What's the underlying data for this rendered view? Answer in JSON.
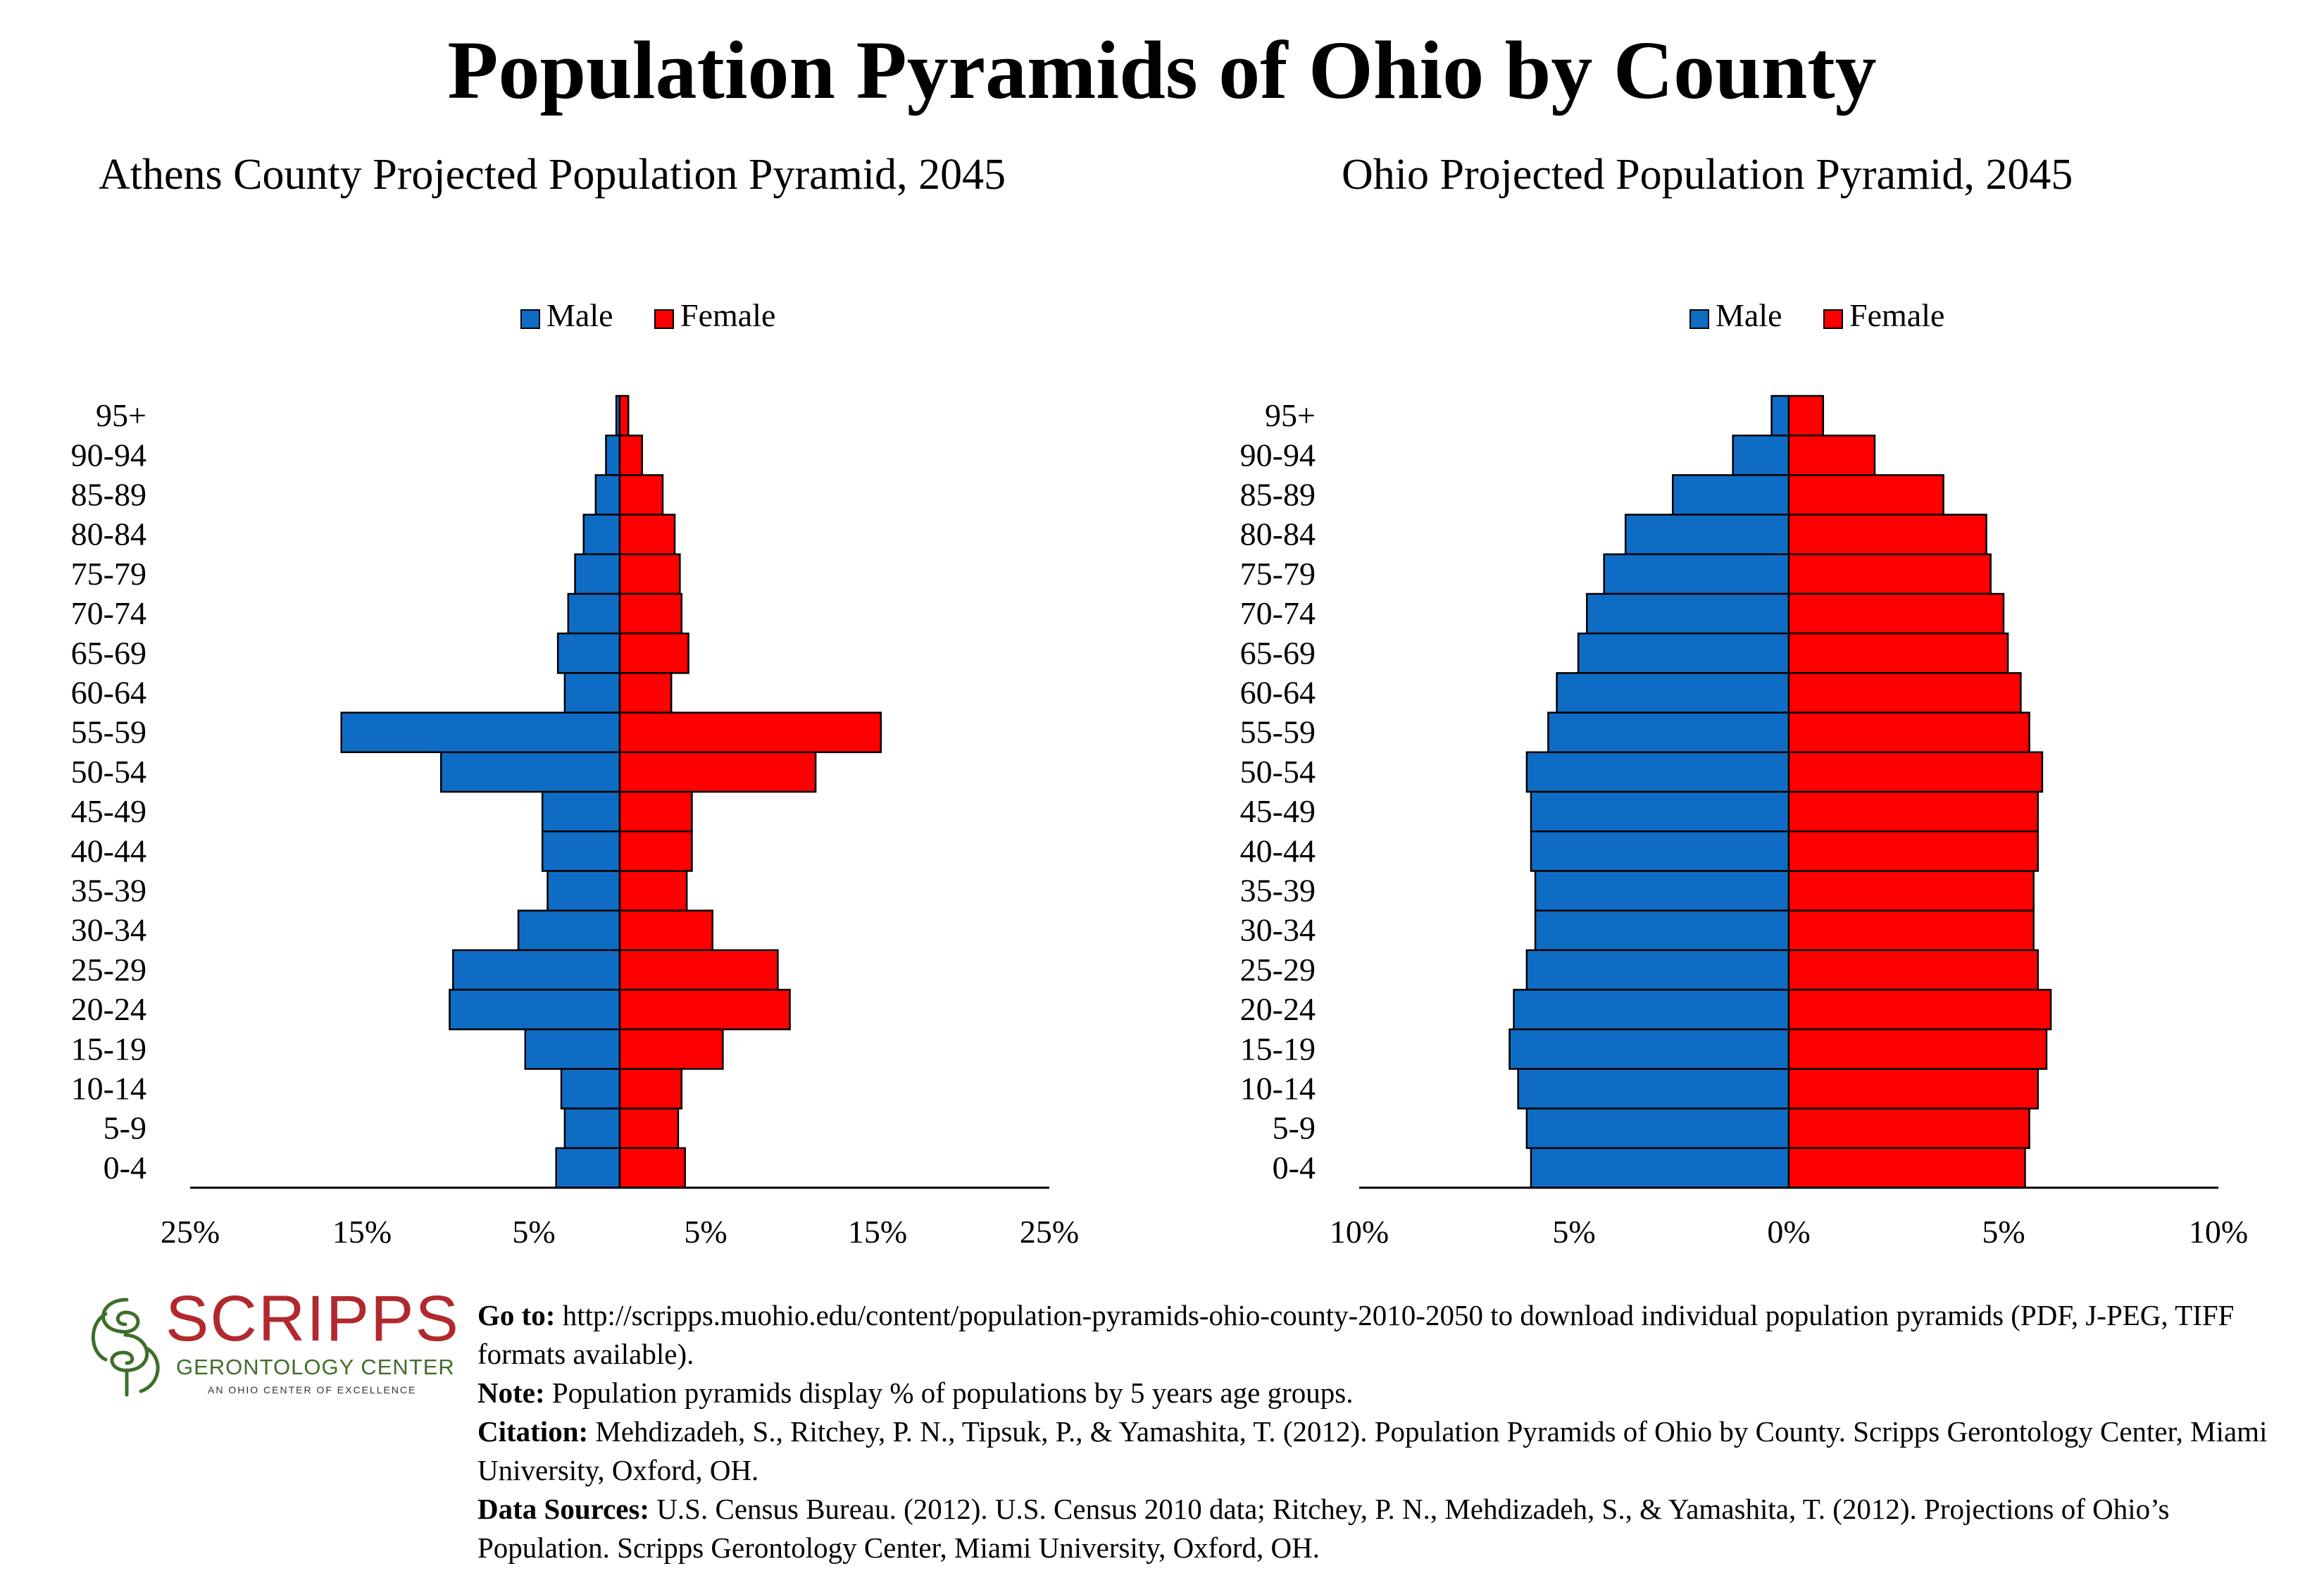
{
  "title": "Population Pyramids of Ohio by County",
  "charts": [
    {
      "subtitle": "Athens County Projected Population Pyramid, 2045",
      "legend": {
        "male": "Male",
        "female": "Female"
      },
      "colors": {
        "male": "#0f6cc4",
        "female": "#ff0000"
      }
    },
    {
      "subtitle": "Ohio Projected Population Pyramid, 2045",
      "legend": {
        "male": "Male",
        "female": "Female"
      },
      "colors": {
        "male": "#0f6cc4",
        "female": "#ff0000"
      }
    }
  ],
  "chart_data": [
    {
      "type": "bar",
      "orientation": "horizontal",
      "title": "Athens County Projected Population Pyramid, 2045",
      "categories": [
        "95+",
        "90-94",
        "85-89",
        "80-84",
        "75-79",
        "70-74",
        "65-69",
        "60-64",
        "55-59",
        "50-54",
        "45-49",
        "40-44",
        "35-39",
        "30-34",
        "25-29",
        "20-24",
        "15-19",
        "10-14",
        "5-9",
        "0-4"
      ],
      "series": [
        {
          "name": "Male",
          "values": [
            0.2,
            0.8,
            1.4,
            2.1,
            2.6,
            3.0,
            3.6,
            3.2,
            16.2,
            10.4,
            4.5,
            4.5,
            4.2,
            5.9,
            9.7,
            9.9,
            5.5,
            3.4,
            3.2,
            3.7
          ]
        },
        {
          "name": "Female",
          "values": [
            0.5,
            1.3,
            2.5,
            3.2,
            3.5,
            3.6,
            4.0,
            3.0,
            15.2,
            11.4,
            4.2,
            4.2,
            3.9,
            5.4,
            9.2,
            9.9,
            6.0,
            3.6,
            3.4,
            3.8
          ]
        }
      ],
      "xlim": [
        -25,
        25
      ],
      "xticks": [
        "25%",
        "15%",
        "5%",
        "5%",
        "15%",
        "25%"
      ],
      "legend_position": "top"
    },
    {
      "type": "bar",
      "orientation": "horizontal",
      "title": "Ohio Projected Population Pyramid, 2045",
      "categories": [
        "95+",
        "90-94",
        "85-89",
        "80-84",
        "75-79",
        "70-74",
        "65-69",
        "60-64",
        "55-59",
        "50-54",
        "45-49",
        "40-44",
        "35-39",
        "30-34",
        "25-29",
        "20-24",
        "15-19",
        "10-14",
        "5-9",
        "0-4"
      ],
      "series": [
        {
          "name": "Male",
          "values": [
            0.4,
            1.3,
            2.7,
            3.8,
            4.3,
            4.7,
            4.9,
            5.4,
            5.6,
            6.1,
            6.0,
            6.0,
            5.9,
            5.9,
            6.1,
            6.4,
            6.5,
            6.3,
            6.1,
            6.0
          ]
        },
        {
          "name": "Female",
          "values": [
            0.8,
            2.0,
            3.6,
            4.6,
            4.7,
            5.0,
            5.1,
            5.4,
            5.6,
            5.9,
            5.8,
            5.8,
            5.7,
            5.7,
            5.8,
            6.1,
            6.0,
            5.8,
            5.6,
            5.5
          ]
        }
      ],
      "xlim": [
        -10,
        10
      ],
      "xticks": [
        "10%",
        "5%",
        "0%",
        "5%",
        "10%"
      ],
      "legend_position": "top"
    }
  ],
  "logo": {
    "word": "SCRIPPS",
    "line2": "GERONTOLOGY CENTER",
    "line3": "AN OHIO CENTER OF EXCELLENCE"
  },
  "footer": {
    "goto_label": "Go to:",
    "goto_text": " http://scripps.muohio.edu/content/population-pyramids-ohio-county-2010-2050 to download individual population pyramids (PDF, J-PEG, TIFF formats available).",
    "note_label": "Note:",
    "note_text": " Population pyramids display % of populations by 5 years age groups.",
    "citation_label": "Citation:",
    "citation_text": " Mehdizadeh, S., Ritchey, P. N., Tipsuk, P., & Yamashita, T. (2012). Population Pyramids of Ohio by County. Scripps Gerontology Center, Miami University, Oxford, OH.",
    "sources_label": "Data Sources:",
    "sources_text": " U.S. Census Bureau. (2012). U.S. Census 2010 data; Ritchey, P. N., Mehdizadeh, S., & Yamashita, T. (2012). Projections of Ohio’s Population. Scripps Gerontology Center, Miami University, Oxford, OH."
  }
}
